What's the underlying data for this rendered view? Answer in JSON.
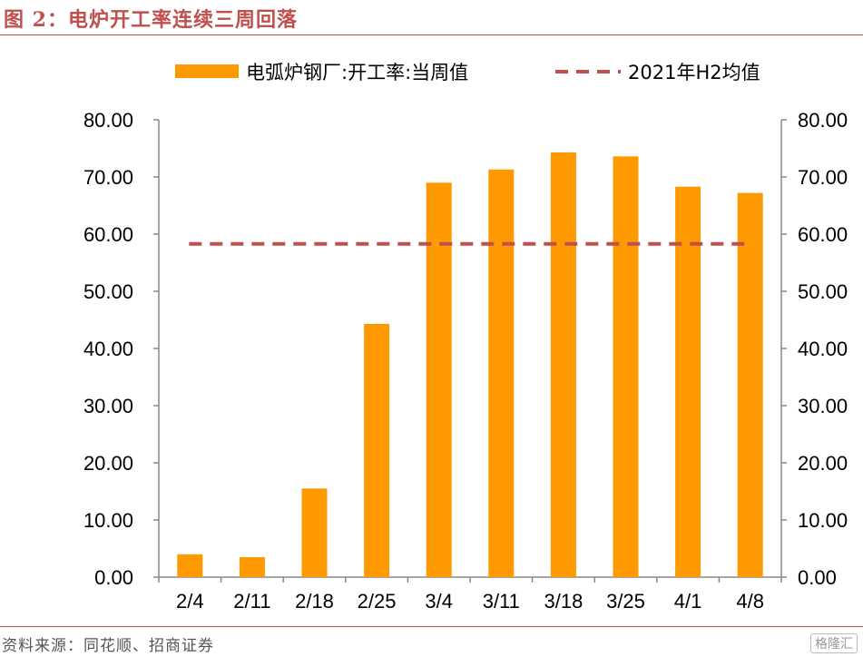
{
  "header": {
    "title": "图 2：电炉开工率连续三周回落"
  },
  "footer": {
    "source": "资料来源：同花顺、招商证券",
    "watermark": "格隆汇"
  },
  "colors": {
    "bar": "#ff9900",
    "avg_line": "#c0504d",
    "accent": "#c0504d"
  },
  "chart_data": {
    "type": "bar",
    "categories": [
      "2/4",
      "2/11",
      "2/18",
      "2/25",
      "3/4",
      "3/11",
      "3/18",
      "3/25",
      "4/1",
      "4/8"
    ],
    "series": [
      {
        "name": "电弧炉钢厂:开工率:当周值",
        "type": "bar",
        "values": [
          4.0,
          3.5,
          15.5,
          44.3,
          69.0,
          71.3,
          74.3,
          73.6,
          68.3,
          67.2
        ]
      },
      {
        "name": "2021年H2均值",
        "type": "line-dashed",
        "value": 58.3
      }
    ],
    "y_ticks": [
      "0.00",
      "10.00",
      "20.00",
      "30.00",
      "40.00",
      "50.00",
      "60.00",
      "70.00",
      "80.00"
    ],
    "ylim": [
      0,
      80
    ],
    "y2lim": [
      0,
      80
    ],
    "grid": false,
    "legend_position": "top"
  }
}
